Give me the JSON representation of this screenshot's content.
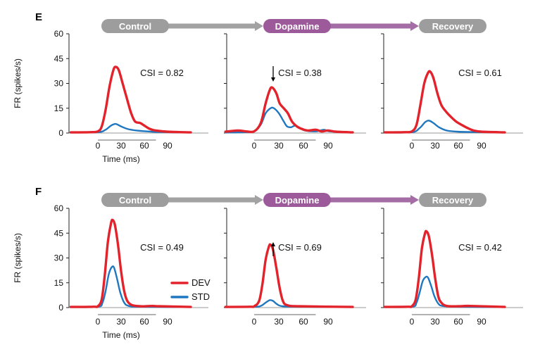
{
  "colors": {
    "dev": "#e3232b",
    "std": "#1f77c0",
    "grey_pill": "#9d9d9d",
    "grey_arrow": "#a2a2a2",
    "purple_pill": "#9d5a9b",
    "purple_arrow": "#a46da6",
    "axis": "#222222"
  },
  "panels": [
    {
      "letter": "E",
      "stages": [
        {
          "label": "Control",
          "color": "grey"
        },
        {
          "label": "Dopamine",
          "color": "purple"
        },
        {
          "label": "Recovery",
          "color": "grey"
        }
      ],
      "ylabel": "FR (spikes/s)",
      "xlabel": "Time (ms)"
    },
    {
      "letter": "F",
      "stages": [
        {
          "label": "Control",
          "color": "grey"
        },
        {
          "label": "Dopamine",
          "color": "purple"
        },
        {
          "label": "Recovery",
          "color": "grey"
        }
      ],
      "ylabel": "FR (spikes/s)",
      "xlabel": "Time (ms)"
    }
  ],
  "legend": [
    {
      "label": "DEV",
      "series": "dev"
    },
    {
      "label": "STD",
      "series": "std"
    }
  ],
  "chart_data": [
    {
      "type": "line",
      "panel": "E",
      "condition": "Control",
      "xlim": [
        -35,
        120
      ],
      "ylim": [
        0,
        60
      ],
      "xticks": [
        0,
        30,
        60,
        90
      ],
      "yticks": [
        0,
        15,
        30,
        45,
        60
      ],
      "annotation": "CSI = 0.82",
      "arrow": "none",
      "series": [
        {
          "name": "DEV",
          "points": [
            [
              -35,
              0.4
            ],
            [
              -10,
              0.5
            ],
            [
              0,
              1
            ],
            [
              5,
              4
            ],
            [
              10,
              14
            ],
            [
              15,
              28
            ],
            [
              20,
              38
            ],
            [
              23,
              40
            ],
            [
              27,
              38
            ],
            [
              32,
              30
            ],
            [
              38,
              20
            ],
            [
              43,
              12
            ],
            [
              48,
              7
            ],
            [
              55,
              6
            ],
            [
              60,
              4.5
            ],
            [
              65,
              3
            ],
            [
              70,
              2
            ],
            [
              75,
              1.5
            ],
            [
              90,
              0.8
            ],
            [
              120,
              0.4
            ]
          ]
        },
        {
          "name": "STD",
          "points": [
            [
              -35,
              0.3
            ],
            [
              0,
              0.5
            ],
            [
              10,
              2
            ],
            [
              17,
              4.5
            ],
            [
              23,
              5.5
            ],
            [
              30,
              4
            ],
            [
              38,
              2.5
            ],
            [
              50,
              1.5
            ],
            [
              70,
              0.8
            ],
            [
              90,
              0.5
            ],
            [
              120,
              0.3
            ]
          ]
        }
      ]
    },
    {
      "type": "line",
      "panel": "E",
      "condition": "Dopamine",
      "xlim": [
        -35,
        120
      ],
      "ylim": [
        0,
        60
      ],
      "xticks": [
        0,
        30,
        60,
        90
      ],
      "yticks": [
        0,
        15,
        30,
        45,
        60
      ],
      "annotation": "CSI = 0.38",
      "arrow": "down",
      "series": [
        {
          "name": "DEV",
          "points": [
            [
              -35,
              0.8
            ],
            [
              -20,
              1.5
            ],
            [
              -10,
              1
            ],
            [
              0,
              1
            ],
            [
              8,
              6
            ],
            [
              14,
              18
            ],
            [
              19,
              26
            ],
            [
              22,
              27.5
            ],
            [
              27,
              24
            ],
            [
              31,
              18
            ],
            [
              36,
              15
            ],
            [
              41,
              12
            ],
            [
              46,
              7
            ],
            [
              52,
              4
            ],
            [
              58,
              2.5
            ],
            [
              65,
              1.5
            ],
            [
              75,
              2
            ],
            [
              82,
              1
            ],
            [
              90,
              1.5
            ],
            [
              100,
              0.8
            ],
            [
              120,
              0.4
            ]
          ]
        },
        {
          "name": "STD",
          "points": [
            [
              -35,
              0.3
            ],
            [
              -10,
              0.5
            ],
            [
              0,
              1
            ],
            [
              8,
              5
            ],
            [
              14,
              12
            ],
            [
              20,
              15
            ],
            [
              24,
              15
            ],
            [
              30,
              12
            ],
            [
              36,
              7
            ],
            [
              40,
              4
            ],
            [
              45,
              3.5
            ],
            [
              50,
              4.5
            ],
            [
              56,
              3
            ],
            [
              62,
              1.5
            ],
            [
              75,
              1
            ],
            [
              85,
              2
            ],
            [
              92,
              1
            ],
            [
              120,
              0.3
            ]
          ]
        }
      ]
    },
    {
      "type": "line",
      "panel": "E",
      "condition": "Recovery",
      "xlim": [
        -35,
        120
      ],
      "ylim": [
        0,
        60
      ],
      "xticks": [
        0,
        30,
        60,
        90
      ],
      "yticks": [
        0,
        15,
        30,
        45,
        60
      ],
      "annotation": "CSI = 0.61",
      "arrow": "none",
      "series": [
        {
          "name": "DEV",
          "points": [
            [
              -35,
              0.4
            ],
            [
              -10,
              0.5
            ],
            [
              0,
              1
            ],
            [
              6,
              5
            ],
            [
              11,
              17
            ],
            [
              16,
              30
            ],
            [
              21,
              36.5
            ],
            [
              24,
              37
            ],
            [
              28,
              33
            ],
            [
              33,
              24
            ],
            [
              38,
              17
            ],
            [
              44,
              13
            ],
            [
              50,
              10
            ],
            [
              57,
              7
            ],
            [
              64,
              5
            ],
            [
              72,
              3
            ],
            [
              80,
              1.5
            ],
            [
              90,
              0.8
            ],
            [
              120,
              0.4
            ]
          ]
        },
        {
          "name": "STD",
          "points": [
            [
              -35,
              0.3
            ],
            [
              0,
              0.5
            ],
            [
              10,
              3
            ],
            [
              17,
              6.5
            ],
            [
              22,
              7.5
            ],
            [
              28,
              6
            ],
            [
              35,
              3.5
            ],
            [
              45,
              1.5
            ],
            [
              60,
              0.8
            ],
            [
              90,
              0.5
            ],
            [
              120,
              0.3
            ]
          ]
        }
      ]
    },
    {
      "type": "line",
      "panel": "F",
      "condition": "Control",
      "xlim": [
        -35,
        120
      ],
      "ylim": [
        0,
        60
      ],
      "xticks": [
        0,
        30,
        60,
        90
      ],
      "yticks": [
        0,
        15,
        30,
        45,
        60
      ],
      "annotation": "CSI = 0.49",
      "arrow": "none",
      "series": [
        {
          "name": "DEV",
          "points": [
            [
              -35,
              0.4
            ],
            [
              -5,
              0.5
            ],
            [
              0,
              0.8
            ],
            [
              5,
              5
            ],
            [
              9,
              20
            ],
            [
              13,
              40
            ],
            [
              17,
              51
            ],
            [
              19,
              53
            ],
            [
              22,
              50
            ],
            [
              26,
              38
            ],
            [
              30,
              22
            ],
            [
              34,
              10
            ],
            [
              38,
              4
            ],
            [
              44,
              1.5
            ],
            [
              55,
              0.8
            ],
            [
              70,
              1
            ],
            [
              80,
              0.8
            ],
            [
              120,
              0.4
            ]
          ]
        },
        {
          "name": "STD",
          "points": [
            [
              -35,
              0.3
            ],
            [
              0,
              0.5
            ],
            [
              6,
              3
            ],
            [
              10,
              10
            ],
            [
              14,
              20
            ],
            [
              18,
              24.5
            ],
            [
              21,
              24
            ],
            [
              25,
              17
            ],
            [
              29,
              9
            ],
            [
              34,
              3
            ],
            [
              40,
              1
            ],
            [
              55,
              0.5
            ],
            [
              120,
              0.3
            ]
          ]
        }
      ]
    },
    {
      "type": "line",
      "panel": "F",
      "condition": "Dopamine",
      "xlim": [
        -35,
        120
      ],
      "ylim": [
        0,
        60
      ],
      "xticks": [
        0,
        30,
        60,
        90
      ],
      "yticks": [
        0,
        15,
        30,
        45,
        60
      ],
      "annotation": "CSI = 0.69",
      "arrow": "up",
      "series": [
        {
          "name": "DEV",
          "points": [
            [
              -35,
              0.4
            ],
            [
              -5,
              0.5
            ],
            [
              0,
              0.8
            ],
            [
              6,
              4
            ],
            [
              10,
              14
            ],
            [
              14,
              29
            ],
            [
              18,
              37
            ],
            [
              20,
              38
            ],
            [
              23,
              35
            ],
            [
              27,
              24
            ],
            [
              31,
              12
            ],
            [
              35,
              4
            ],
            [
              40,
              1.5
            ],
            [
              55,
              0.8
            ],
            [
              120,
              0.4
            ]
          ]
        },
        {
          "name": "STD",
          "points": [
            [
              -35,
              0.3
            ],
            [
              0,
              0.5
            ],
            [
              8,
              1
            ],
            [
              14,
              3
            ],
            [
              19,
              4.5
            ],
            [
              23,
              4
            ],
            [
              28,
              2
            ],
            [
              35,
              0.8
            ],
            [
              60,
              0.5
            ],
            [
              120,
              0.3
            ]
          ]
        }
      ]
    },
    {
      "type": "line",
      "panel": "F",
      "condition": "Recovery",
      "xlim": [
        -35,
        120
      ],
      "ylim": [
        0,
        60
      ],
      "xticks": [
        0,
        30,
        60,
        90
      ],
      "yticks": [
        0,
        15,
        30,
        45,
        60
      ],
      "annotation": "CSI = 0.42",
      "arrow": "none",
      "series": [
        {
          "name": "DEV",
          "points": [
            [
              -35,
              0.4
            ],
            [
              -5,
              0.5
            ],
            [
              0,
              0.8
            ],
            [
              5,
              5
            ],
            [
              9,
              18
            ],
            [
              13,
              36
            ],
            [
              17,
              45
            ],
            [
              19,
              46
            ],
            [
              22,
              43
            ],
            [
              26,
              32
            ],
            [
              30,
              18
            ],
            [
              34,
              7
            ],
            [
              38,
              3
            ],
            [
              45,
              1
            ],
            [
              60,
              0.8
            ],
            [
              75,
              1
            ],
            [
              120,
              0.4
            ]
          ]
        },
        {
          "name": "STD",
          "points": [
            [
              -35,
              0.3
            ],
            [
              0,
              0.5
            ],
            [
              6,
              3
            ],
            [
              10,
              9
            ],
            [
              14,
              16
            ],
            [
              18,
              18.5
            ],
            [
              21,
              18
            ],
            [
              25,
              13
            ],
            [
              29,
              7
            ],
            [
              34,
              2.5
            ],
            [
              40,
              1
            ],
            [
              60,
              0.5
            ],
            [
              120,
              0.3
            ]
          ]
        }
      ]
    }
  ]
}
